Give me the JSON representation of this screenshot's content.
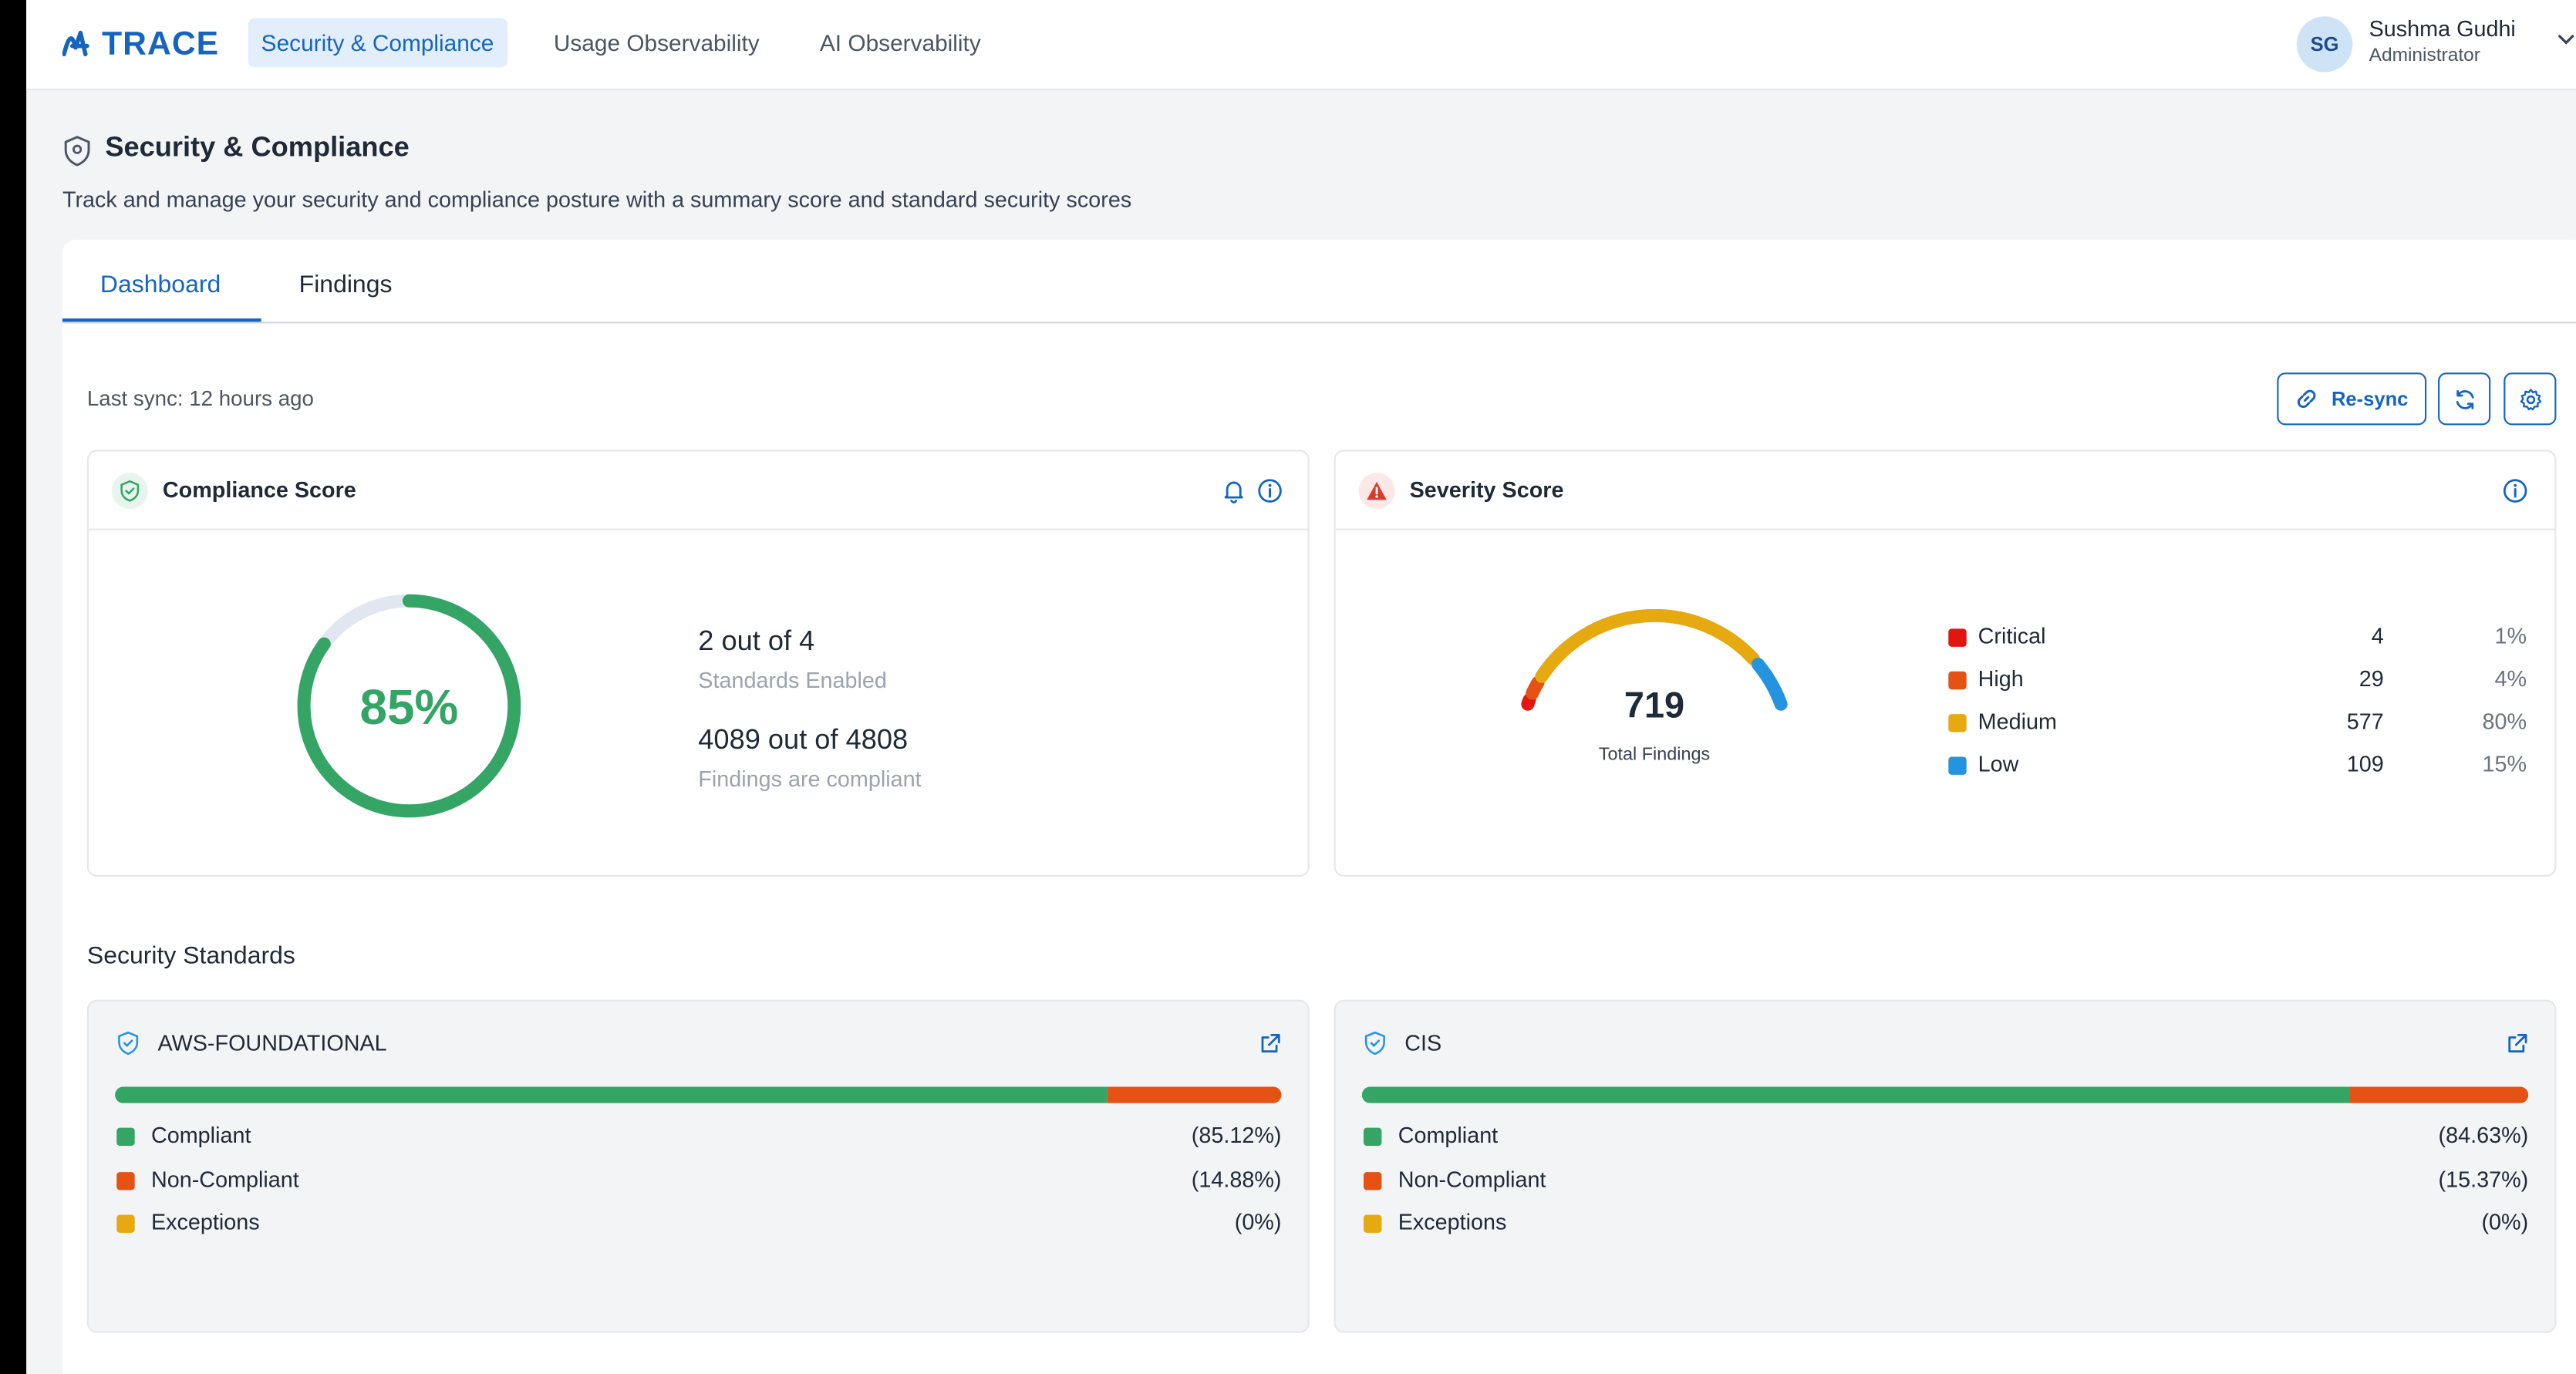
{
  "brand": {
    "name": "TRACE",
    "color": "#1565c0"
  },
  "nav": {
    "tabs": [
      {
        "label": "Security & Compliance",
        "active": true
      },
      {
        "label": "Usage Observability",
        "active": false
      },
      {
        "label": "AI Observability",
        "active": false
      }
    ]
  },
  "user": {
    "initials": "SG",
    "name": "Sushma Gudhi",
    "role": "Administrator"
  },
  "page": {
    "title": "Security & Compliance",
    "subtitle": "Track and manage your security and compliance posture with a summary score and standard security scores"
  },
  "tabs": [
    {
      "label": "Dashboard",
      "active": true
    },
    {
      "label": "Findings",
      "active": false
    }
  ],
  "toolbar": {
    "last_sync": "Last sync: 12 hours ago",
    "resync_label": "Re-sync"
  },
  "compliance": {
    "title": "Compliance Score",
    "score_percent": 85,
    "score_label": "85%",
    "standards_value": "2 out of 4",
    "standards_caption": "Standards Enabled",
    "findings_value": "4089 out of 4808",
    "findings_caption": "Findings are compliant",
    "color": "#34a565"
  },
  "severity": {
    "title": "Severity Score",
    "total": "719",
    "total_caption": "Total Findings",
    "levels": [
      {
        "name": "Critical",
        "count": 4,
        "count_label": "4",
        "pct": "1%",
        "color": "#e3150f"
      },
      {
        "name": "High",
        "count": 29,
        "count_label": "29",
        "pct": "4%",
        "color": "#e65114"
      },
      {
        "name": "Medium",
        "count": 577,
        "count_label": "577",
        "pct": "80%",
        "color": "#e6a90f"
      },
      {
        "name": "Low",
        "count": 109,
        "count_label": "109",
        "pct": "15%",
        "color": "#2594e0"
      }
    ]
  },
  "standards": {
    "title": "Security Standards",
    "items": [
      {
        "name": "AWS-FOUNDATIONAL",
        "compliant": 85.12,
        "non_compliant": 14.88,
        "exceptions": 0,
        "rows": [
          {
            "label": "Compliant",
            "value": "(85.12%)",
            "color": "#34a565"
          },
          {
            "label": "Non-Compliant",
            "value": "(14.88%)",
            "color": "#e65114"
          },
          {
            "label": "Exceptions",
            "value": "(0%)",
            "color": "#e6a90f"
          }
        ]
      },
      {
        "name": "CIS",
        "compliant": 84.63,
        "non_compliant": 15.37,
        "exceptions": 0,
        "rows": [
          {
            "label": "Compliant",
            "value": "(84.63%)",
            "color": "#34a565"
          },
          {
            "label": "Non-Compliant",
            "value": "(15.37%)",
            "color": "#e65114"
          },
          {
            "label": "Exceptions",
            "value": "(0%)",
            "color": "#e6a90f"
          }
        ]
      }
    ]
  },
  "icons": {
    "logo": "trace-logo-icon",
    "shield": "shield-icon",
    "alert": "alert-triangle-icon",
    "bell": "bell-icon",
    "info": "info-icon",
    "link": "link-icon",
    "refresh": "refresh-icon",
    "settings": "gear-icon",
    "external": "external-link-icon",
    "chevron": "chevron-down-icon"
  }
}
